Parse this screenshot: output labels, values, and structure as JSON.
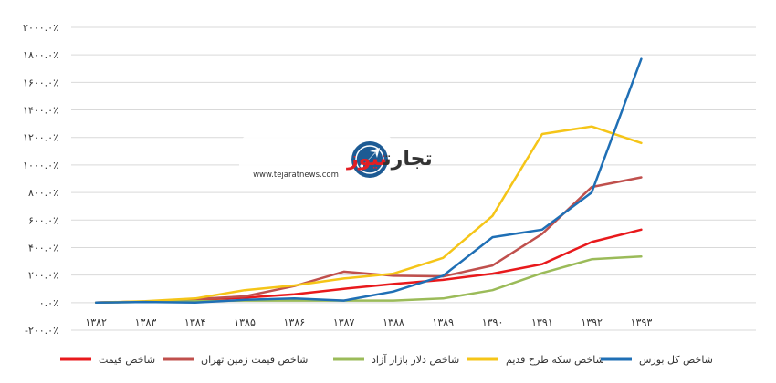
{
  "chart_data": {
    "type": "line",
    "categories": [
      "۱۳۸۲",
      "۱۳۸۳",
      "۱۳۸۴",
      "۱۳۸۵",
      "۱۳۸۶",
      "۱۳۸۷",
      "۱۳۸۸",
      "۱۳۸۹",
      "۱۳۹۰",
      "۱۳۹۱",
      "۱۳۹۲",
      "۱۳۹۳"
    ],
    "y_ticks": [
      -200,
      0,
      200,
      400,
      600,
      800,
      1000,
      1200,
      1400,
      1600,
      1800,
      2000
    ],
    "y_tick_labels": [
      "-۲۰۰.۰٪",
      "۰.۰٪",
      "۲۰۰.۰٪",
      "۴۰۰.۰٪",
      "۶۰۰.۰٪",
      "۸۰۰.۰٪",
      "۱۰۰۰.۰٪",
      "۱۲۰۰.۰٪",
      "۱۴۰۰.۰٪",
      "۱۶۰۰.۰٪",
      "۱۸۰۰.۰٪",
      "۲۰۰۰.۰٪"
    ],
    "ylim": [
      -200,
      2000
    ],
    "grid": true,
    "legend_position": "bottom",
    "series": [
      {
        "name": "شاخص قیمت",
        "color": "#e8191c",
        "values": [
          0,
          8,
          20,
          35,
          60,
          100,
          135,
          165,
          210,
          280,
          440,
          530
        ]
      },
      {
        "name": "شاخص قیمت زمین تهران",
        "color": "#c0504d",
        "values": [
          0,
          8,
          25,
          45,
          120,
          225,
          195,
          190,
          270,
          500,
          840,
          910
        ]
      },
      {
        "name": "شاخص دلار بازار آزاد",
        "color": "#9bbb59",
        "values": [
          0,
          5,
          10,
          15,
          15,
          15,
          15,
          30,
          90,
          215,
          315,
          335
        ]
      },
      {
        "name": "شاخص سکه طرح قدیم",
        "color": "#f5c518",
        "values": [
          0,
          10,
          30,
          90,
          125,
          175,
          210,
          325,
          630,
          1225,
          1280,
          1160
        ]
      },
      {
        "name": "شاخص کل بورس",
        "color": "#1f6fb5",
        "values": [
          0,
          5,
          0,
          20,
          30,
          15,
          80,
          195,
          475,
          530,
          800,
          1770
        ]
      }
    ]
  },
  "logo": {
    "name_fa": "تجارت نیوز",
    "name_fa_part1": "تجارت",
    "name_fa_part2": "نیوز",
    "url": "www.tejaratnews.com",
    "color_red": "#e31e24",
    "color_blue": "#1d5b94",
    "color_dark": "#333333"
  }
}
